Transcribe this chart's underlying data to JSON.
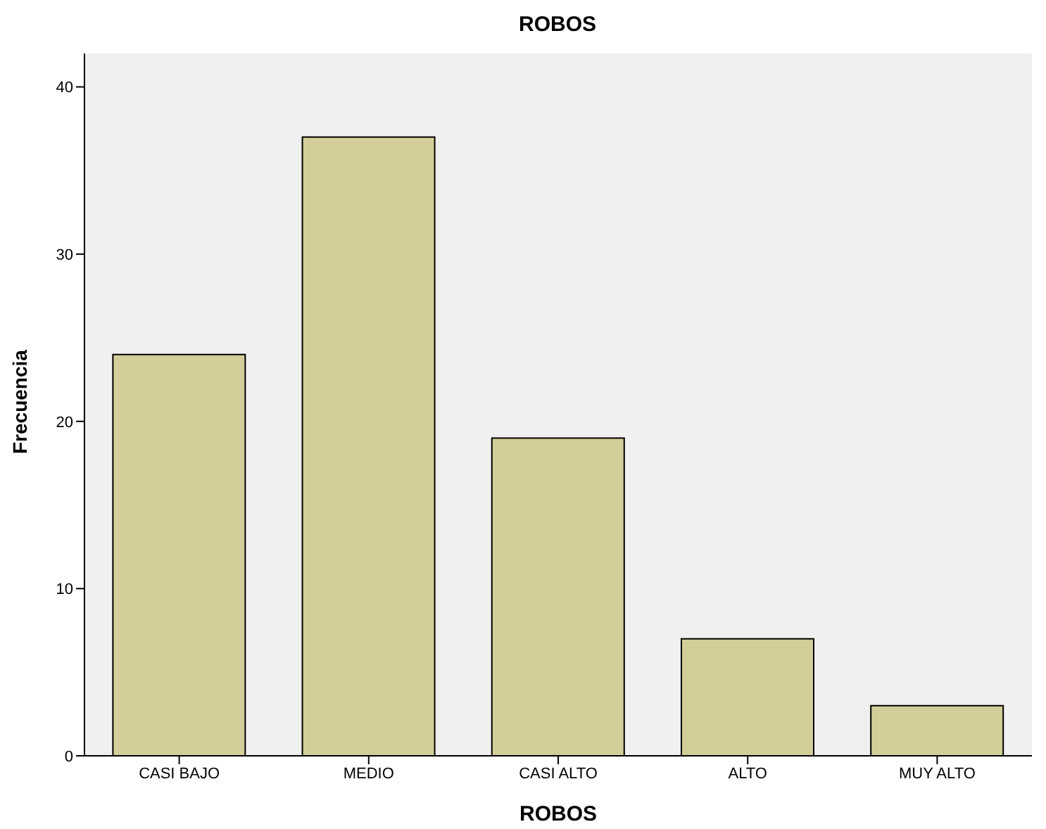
{
  "chart_data": {
    "type": "bar",
    "title": "ROBOS",
    "xlabel": "ROBOS",
    "ylabel": "Frecuencia",
    "categories": [
      "CASI BAJO",
      "MEDIO",
      "CASI ALTO",
      "ALTO",
      "MUY ALTO"
    ],
    "values": [
      24,
      37,
      19,
      7,
      3
    ],
    "color": "#d3ce97",
    "ylim": [
      0,
      42
    ],
    "yticks": [
      0,
      10,
      20,
      30,
      40
    ],
    "grid": false
  }
}
